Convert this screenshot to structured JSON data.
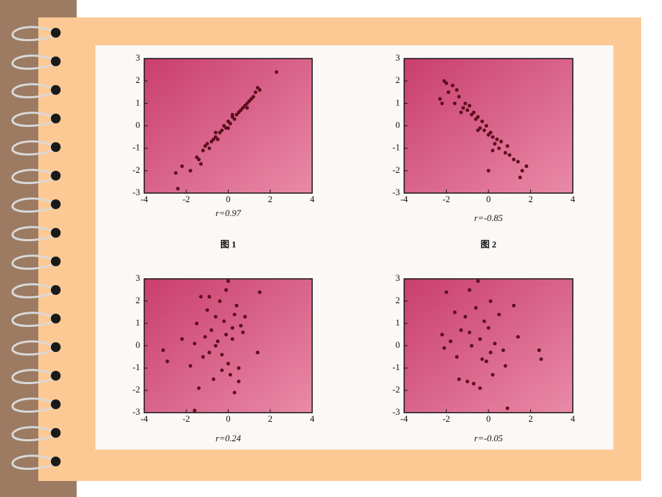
{
  "chart_data": [
    {
      "type": "scatter",
      "xlabel": "r=0.97",
      "caption": "图 1",
      "color": "#5e0d1c",
      "xlim": [
        -4,
        4
      ],
      "ylim": [
        -3,
        3
      ],
      "xticks": [
        -4,
        -2,
        0,
        2,
        4
      ],
      "yticks": [
        -3,
        -2,
        -1,
        0,
        1,
        2,
        3
      ],
      "x": [
        -2.5,
        -2.2,
        -1.8,
        -1.5,
        -1.4,
        -1.2,
        -1.1,
        -1.0,
        -0.9,
        -0.8,
        -0.7,
        -0.6,
        -0.5,
        -0.4,
        -0.3,
        -0.2,
        -0.1,
        0,
        0,
        0.1,
        0.2,
        0.3,
        0.4,
        0.5,
        0.6,
        0.7,
        0.8,
        0.9,
        1.0,
        1.1,
        1.2,
        1.3,
        1.4,
        1.5,
        2.3,
        -0.6,
        0.2,
        0.9,
        -1.3,
        -2.4
      ],
      "y": [
        -2.1,
        -1.8,
        -2.0,
        -1.4,
        -1.5,
        -1.1,
        -0.9,
        -0.8,
        -1.0,
        -0.7,
        -0.6,
        -0.5,
        -0.6,
        -0.3,
        -0.2,
        0.0,
        -0.1,
        0.2,
        -0.1,
        0.1,
        0.4,
        0.3,
        0.5,
        0.6,
        0.7,
        0.8,
        0.9,
        1.0,
        1.1,
        1.2,
        1.3,
        1.5,
        1.7,
        1.6,
        2.4,
        -0.3,
        0.5,
        0.8,
        -1.7,
        -2.8
      ]
    },
    {
      "type": "scatter",
      "xlabel": "r=-0.85",
      "caption": "图 2",
      "color": "#5e0d1c",
      "xlim": [
        -4,
        4
      ],
      "ylim": [
        -3,
        3
      ],
      "xticks": [
        -4,
        -2,
        0,
        2,
        4
      ],
      "yticks": [
        -3,
        -2,
        -1,
        0,
        1,
        2,
        3
      ],
      "x": [
        -2.3,
        -2.1,
        -2.0,
        -1.9,
        -1.7,
        -1.6,
        -1.5,
        -1.4,
        -1.2,
        -1.1,
        -1.0,
        -0.9,
        -0.8,
        -0.7,
        -0.6,
        -0.5,
        -0.4,
        -0.3,
        -0.2,
        -0.1,
        0,
        0.1,
        0.2,
        0.3,
        0.4,
        0.5,
        0.6,
        0.8,
        1.0,
        1.2,
        1.4,
        1.6,
        1.8,
        -2.2,
        -1.3,
        -0.5,
        0.2,
        0.9,
        1.5,
        0.0
      ],
      "y": [
        1.2,
        2.0,
        1.9,
        1.5,
        1.8,
        1.0,
        1.6,
        1.3,
        0.8,
        1.0,
        0.7,
        0.9,
        0.5,
        0.6,
        0.3,
        0.4,
        -0.1,
        0.2,
        -0.2,
        0.0,
        -0.4,
        -0.3,
        -0.5,
        -0.8,
        -0.6,
        -1.0,
        -0.7,
        -1.2,
        -1.3,
        -1.5,
        -1.6,
        -2.0,
        -1.8,
        1.0,
        0.6,
        -0.2,
        -1.1,
        -0.9,
        -2.3,
        -2.0
      ]
    },
    {
      "type": "scatter",
      "xlabel": "r=0.24",
      "color": "#5e0d1c",
      "xlim": [
        -4,
        4
      ],
      "ylim": [
        -3,
        3
      ],
      "xticks": [
        -4,
        -2,
        0,
        2,
        4
      ],
      "yticks": [
        -3,
        -2,
        -1,
        0,
        1,
        2,
        3
      ],
      "x": [
        -3.1,
        -2.9,
        -2.2,
        -1.8,
        -1.6,
        -1.5,
        -1.3,
        -1.2,
        -1.0,
        -0.9,
        -0.8,
        -0.7,
        -0.6,
        -0.5,
        -0.4,
        -0.3,
        -0.2,
        -0.1,
        0,
        0.1,
        0.2,
        0.3,
        0.4,
        0.5,
        0.6,
        0.7,
        0.8,
        1.4,
        1.5,
        -1.4,
        -0.6,
        0.0,
        0.3,
        -0.3,
        -1.1,
        0.5,
        -0.9,
        -1.6,
        0.2,
        -0.1
      ],
      "y": [
        -0.2,
        -0.7,
        0.3,
        -0.9,
        -2.9,
        1.0,
        2.2,
        -0.5,
        1.6,
        2.2,
        0.7,
        -1.5,
        1.3,
        0.2,
        2.0,
        -0.4,
        1.1,
        0.5,
        2.9,
        -1.3,
        0.8,
        -2.1,
        1.8,
        -1.0,
        0.9,
        0.6,
        1.3,
        -0.3,
        2.4,
        -1.9,
        0.0,
        -0.8,
        1.4,
        -1.1,
        0.4,
        -1.6,
        -0.3,
        0.1,
        0.3,
        2.5
      ]
    },
    {
      "type": "scatter",
      "xlabel": "r=-0.05",
      "color": "#5e0d1c",
      "xlim": [
        -4,
        4
      ],
      "ylim": [
        -3,
        3
      ],
      "xticks": [
        -4,
        -2,
        0,
        2,
        4
      ],
      "yticks": [
        -3,
        -2,
        -1,
        0,
        1,
        2,
        3
      ],
      "x": [
        -2.2,
        -2.1,
        -2.0,
        -1.8,
        -1.6,
        -1.5,
        -1.4,
        -1.3,
        -1.1,
        -1.0,
        -0.9,
        -0.8,
        -0.7,
        -0.6,
        -0.5,
        -0.4,
        -0.3,
        -0.2,
        -0.1,
        0,
        0.1,
        0.2,
        0.3,
        0.5,
        0.7,
        0.9,
        1.2,
        1.4,
        2.4,
        2.5,
        -0.4,
        0.1,
        -0.9,
        0.8
      ],
      "y": [
        0.5,
        -0.1,
        2.4,
        0.2,
        1.5,
        -0.5,
        -1.5,
        0.7,
        1.3,
        -1.6,
        2.5,
        0.0,
        -1.7,
        1.7,
        2.9,
        0.3,
        -0.6,
        1.1,
        -0.7,
        0.8,
        2.0,
        -1.3,
        0.1,
        1.4,
        -0.2,
        -2.8,
        1.8,
        0.4,
        -0.2,
        -0.6,
        -1.9,
        -0.3,
        0.6,
        -0.9
      ]
    }
  ]
}
